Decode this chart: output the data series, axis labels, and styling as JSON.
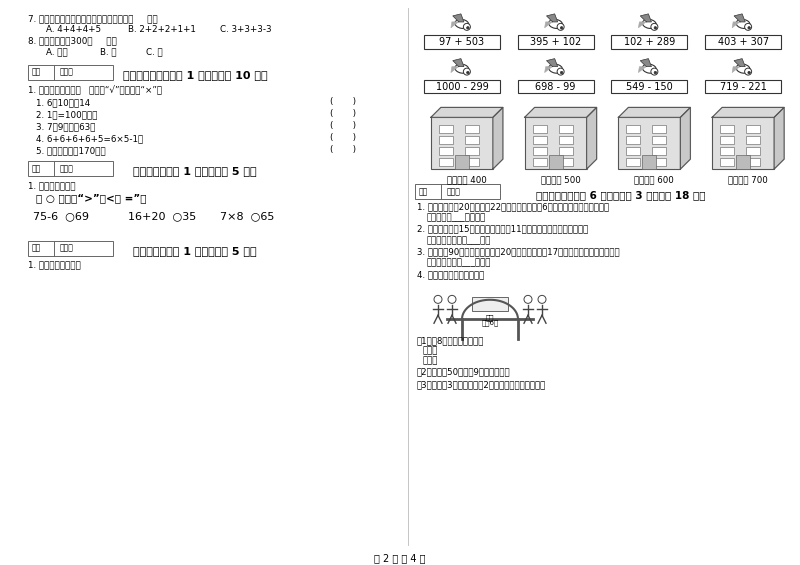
{
  "bg_color": "#ffffff",
  "title_bottom": "第 2 页 共 4 页",
  "left_col": {
    "q7_text": "7. 下列算式中不可以改写成乘法算式的是（     ）。",
    "q7_a": "A. 4+4+4+5",
    "q7_b": "B. 2+2+2+1+1",
    "q7_c": "C. 3+3+3-3",
    "q8_text": "8. 一棵树的高度300（     ）。",
    "q8_a": "A. 厘米",
    "q8_b": "B. 克",
    "q8_c": "C. 米",
    "sec5_title": "五、判断对与错（共 1 大题，共计 10 分）",
    "sec5_q": "1. 判断题。对的在（   ）里画“√”，错的填“×”。",
    "sec5_items": [
      "1. 6的10倍是14",
      "2. 1米=100厘米。",
      "3. 7个9相加得63。",
      "4. 6+6+6+6+5=6×5-1。",
      "5. 李老师身高是170米。"
    ],
    "sec6_title": "六、比一比（共 1 大题，共计 5 分）",
    "sec6_q": "1. 我会判断大小。",
    "sec6_fill": "在 ○ 里填上“>”、<或 =”。",
    "sec6_exprs": [
      "75-6  ○69",
      "16+20  ○35",
      "7×8  ○65"
    ],
    "sec7_title": "七、连一连（共 1 大题，共计 5 分）",
    "sec7_q": "1. 估一估，连一连。"
  },
  "right_col": {
    "row1_exprs": [
      "97 + 503",
      "395 + 102",
      "102 + 289",
      "403 + 307"
    ],
    "row2_exprs": [
      "1000 - 299",
      "698 - 99",
      "549 - 150",
      "719 - 221"
    ],
    "building_labels": [
      "得数接近 400",
      "得数大约 500",
      "得数接近 600",
      "得数大约 700"
    ],
    "sec8_title": "八、解决问题（共 6 小题，每题 3 分，共计 18 分）",
    "sec8_q1": "1. 二年级一班有20名男生，22名女生，平均分成6个小组，每组有几名同学？",
    "sec8_a1": "答：每组有___名同学。",
    "sec8_q2": "2. 二一班有女生15人，男生比女生夐11人，问二一班有学生多少人？",
    "sec8_a2": "答：二一班有学生___人。",
    "sec8_q3": "3. 图书馆有90本书，一年级借走20本，二年级借走17本，图书馆还有多少本书？",
    "sec8_a3": "答：图书馆还有___本书。",
    "sec8_q4": "4. 星期日同学们去游乐园。",
    "sec8_q4_sub1": "（1）抄8张门票用多少元？",
    "sec8_q4_method1": "乘法：",
    "sec8_q4_method2": "加法：",
    "sec8_q4_sub2": "（2）小莉拿50元，折9张门票够吗？",
    "sec8_q4_sub3": "（3）小红了3张门票，还刁2元錢，小红带了多少錢？"
  }
}
